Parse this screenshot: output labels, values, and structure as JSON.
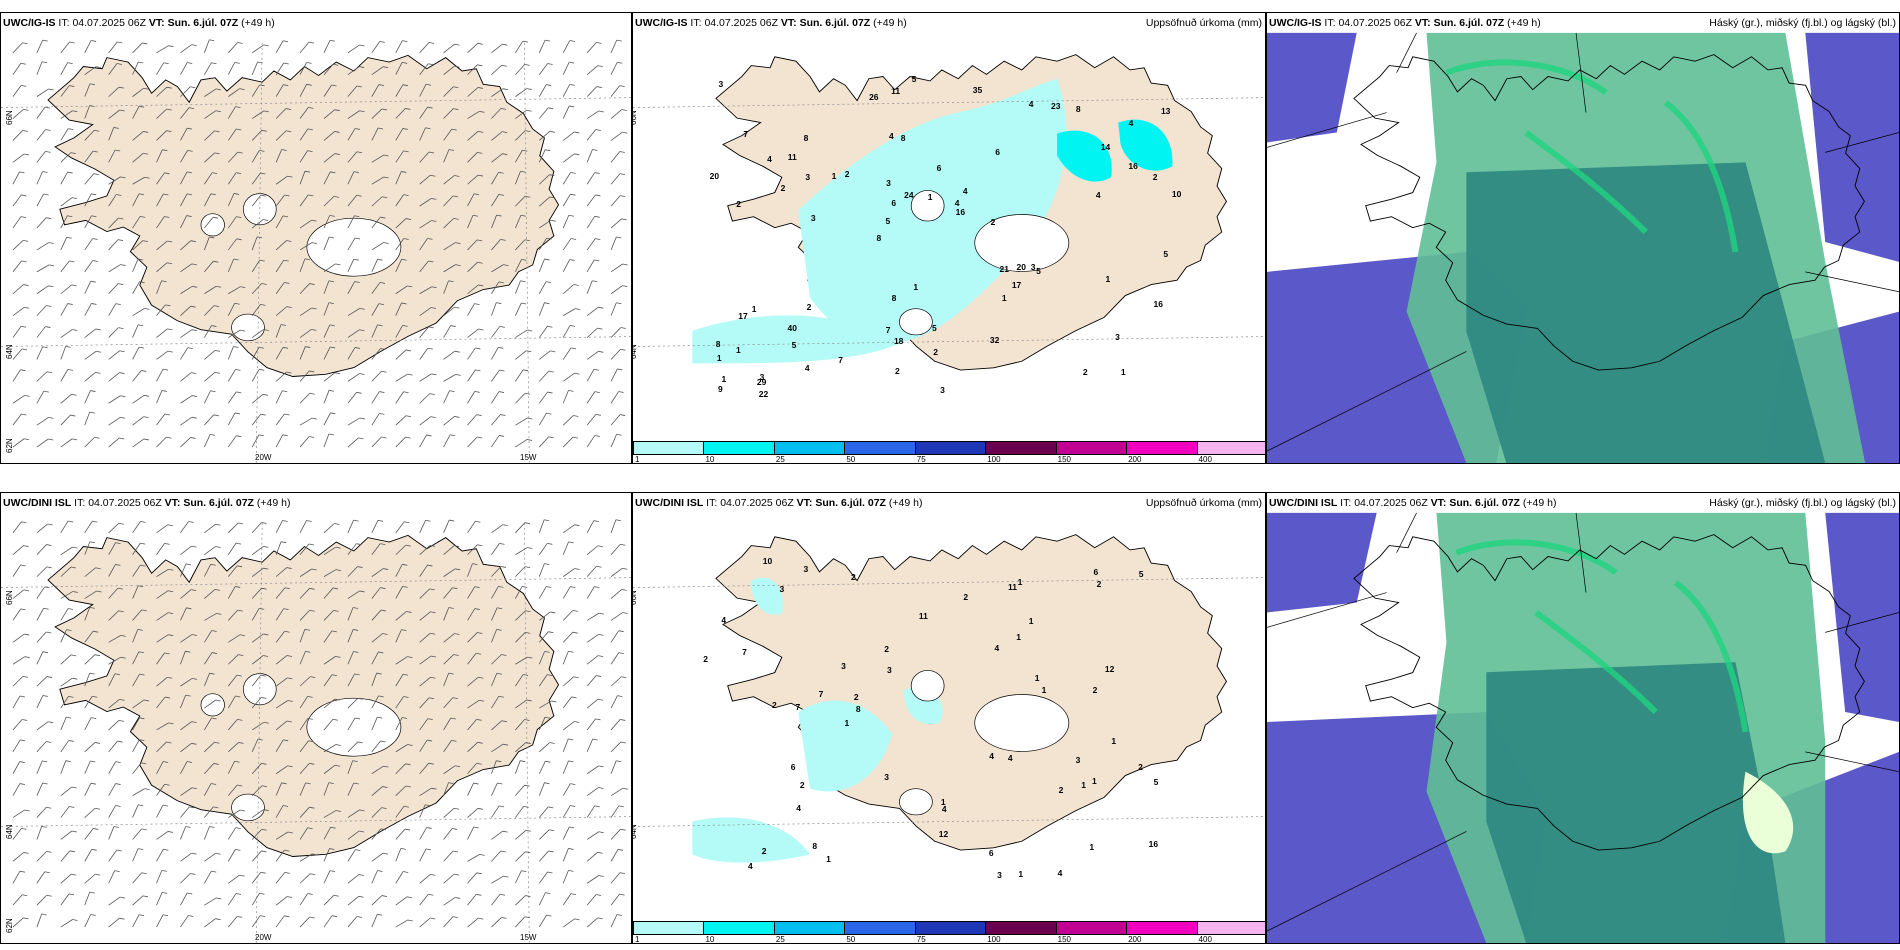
{
  "rows": [
    {
      "model": "UWC/IG-IS",
      "it_label": "IT:",
      "it_value": "04.07.2025 06Z",
      "vt_label": "VT:",
      "vt_value": "Sun. 6.júl. 07Z",
      "lead": "(+49 h)"
    },
    {
      "model": "UWC/DINI ISL",
      "it_label": "IT:",
      "it_value": "04.07.2025 06Z",
      "vt_label": "VT:",
      "vt_value": "Sun. 6.júl. 07Z",
      "lead": "(+49 h)"
    }
  ],
  "precip_title": "Uppsöfnuð úrkoma (mm)",
  "cloud_title": "Háský (gr.), miðský (fj.bl.) og lágský (bl.)",
  "axis": {
    "lon_20": "20W",
    "lon_15": "15W",
    "lat_66": "66N",
    "lat_64": "64N",
    "lat_62": "62N"
  },
  "legend": {
    "colors": [
      "#b4fbf7",
      "#00f4f1",
      "#00bfee",
      "#2767e8",
      "#1f36b7",
      "#6b0050",
      "#bf0093",
      "#f200bf",
      "#f5b3f0"
    ],
    "labels": [
      "1",
      "10",
      "25",
      "50",
      "75",
      "100",
      "150",
      "200",
      "400"
    ]
  },
  "precip_values": {
    "top": [
      "1",
      "2",
      "4",
      "8",
      "6",
      "3",
      "4",
      "6",
      "1",
      "2",
      "1",
      "5",
      "8",
      "4",
      "5",
      "7",
      "11",
      "10",
      "21",
      "16",
      "5",
      "7",
      "6",
      "8",
      "4",
      "2",
      "2",
      "3",
      "3",
      "3",
      "1",
      "2",
      "1",
      "4",
      "2",
      "4",
      "1",
      "18",
      "16",
      "17",
      "14",
      "13",
      "17",
      "32",
      "40",
      "22",
      "9",
      "5",
      "8",
      "5",
      "3",
      "20",
      "11",
      "23",
      "29",
      "35",
      "26",
      "24",
      "16",
      "8",
      "7",
      "20",
      "3",
      "8",
      "3",
      "4",
      "5",
      "3",
      "2",
      "1",
      "1",
      "2",
      "1",
      "2",
      "4",
      "1"
    ],
    "bottom": [
      "2",
      "4",
      "4",
      "2",
      "1",
      "3",
      "2",
      "1",
      "3",
      "2",
      "4",
      "2",
      "2",
      "1",
      "1",
      "3",
      "4",
      "8",
      "11",
      "11",
      "7",
      "3",
      "1",
      "2",
      "5",
      "4",
      "2",
      "3",
      "6",
      "7",
      "12",
      "12",
      "16",
      "6",
      "5",
      "7",
      "4",
      "6",
      "8",
      "10",
      "1",
      "1",
      "2",
      "3",
      "2",
      "4",
      "3",
      "2",
      "1",
      "1",
      "1",
      "1",
      "2",
      "1",
      "4",
      "1"
    ]
  },
  "colors": {
    "land": "#f3e4d1",
    "ocean": "#ffffff",
    "precip_light": "#b4fbf7",
    "precip_mid": "#00f4f1",
    "cloud_low": "#5b58c9",
    "cloud_mid": "#2f8a82",
    "cloud_high": "#5fbf95"
  }
}
